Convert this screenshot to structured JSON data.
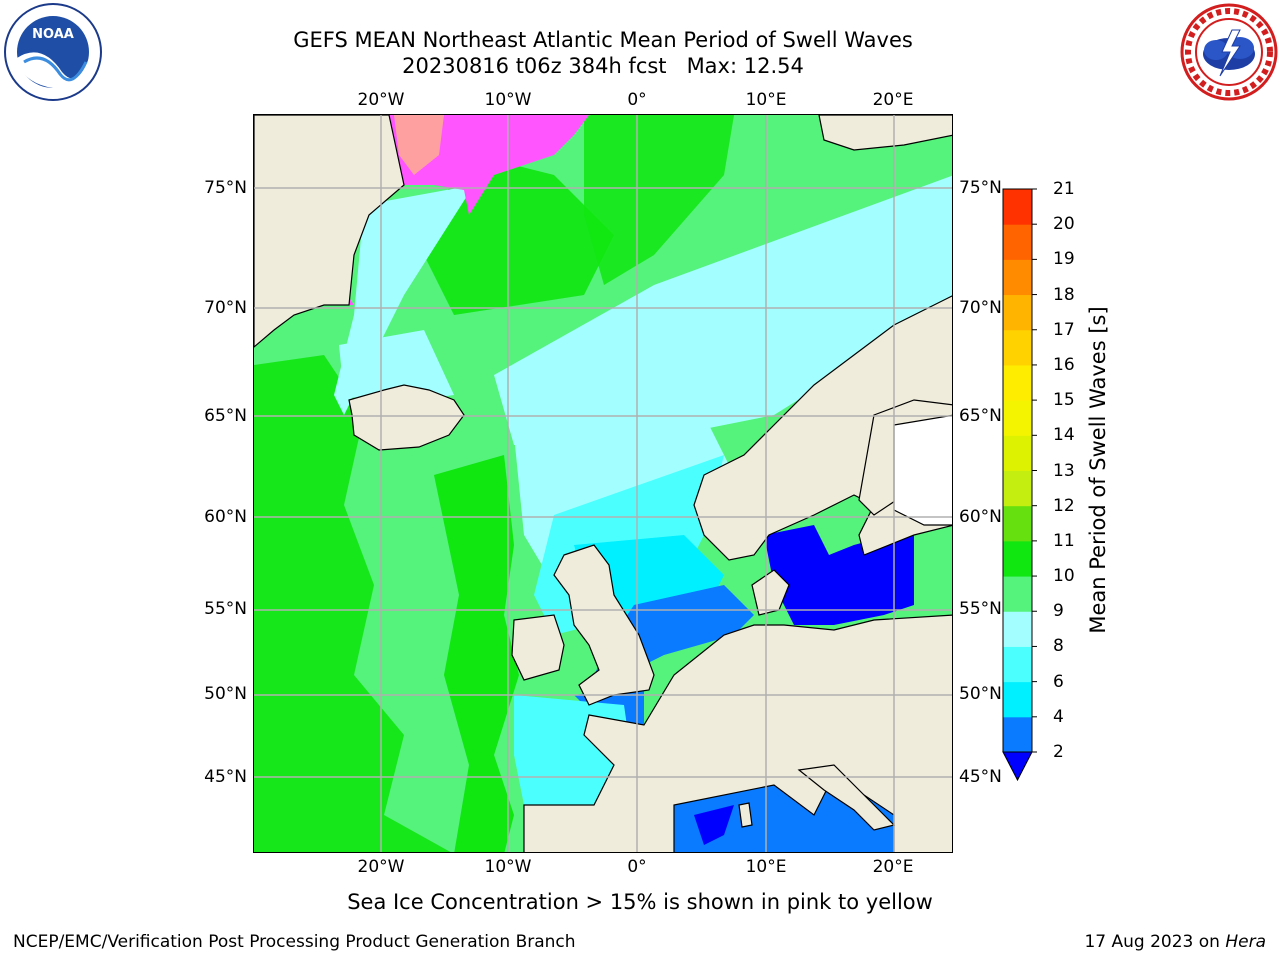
{
  "title": {
    "line1": "GEFS MEAN Northeast Atlantic Mean Period of Swell Waves",
    "line2": "20230816 t06z 384h fcst   Max: 12.54"
  },
  "logos": {
    "left": {
      "name": "noaa-logo",
      "text": "NOAA",
      "ring_text": "NATIONAL OCEANIC AND ATMOSPHERIC ADMINISTRATION · U.S. DEPARTMENT OF COMMERCE"
    },
    "right": {
      "name": "nws-logo",
      "ring_text": "NATIONAL WEATHER SERVICE"
    }
  },
  "map": {
    "projection": "Mercator",
    "lon_ticks_top": [
      "20°W",
      "10°W",
      "0°",
      "10°E",
      "20°E"
    ],
    "lon_ticks_bottom": [
      "20°W",
      "10°W",
      "0°",
      "10°E",
      "20°E"
    ],
    "lat_ticks_left": [
      "75°N",
      "70°N",
      "65°N",
      "60°N",
      "55°N",
      "50°N",
      "45°N"
    ],
    "lat_ticks_right": [
      "75°N",
      "70°N",
      "65°N",
      "60°N",
      "55°N",
      "50°N",
      "45°N"
    ],
    "land_color": "#efecdc",
    "grid_color": "#b0b0b0"
  },
  "colorbar": {
    "title": "Mean Period of Swell Waves [s]",
    "levels": [
      "2",
      "4",
      "6",
      "8",
      "9",
      "10",
      "11",
      "12",
      "13",
      "14",
      "15",
      "16",
      "17",
      "18",
      "19",
      "20",
      "21"
    ],
    "colors": [
      "#0a7bff",
      "#00f0ff",
      "#4cffff",
      "#a3ffff",
      "#55f27c",
      "#10e610",
      "#66e10f",
      "#c4ee0f",
      "#ddf200",
      "#f4f400",
      "#ffed00",
      "#ffd200",
      "#ffb400",
      "#ff8c00",
      "#ff6400",
      "#ff3200"
    ],
    "extend_min_color": "#0000ff"
  },
  "notes": {
    "sea_ice": "Sea Ice Concentration > 15% is shown in pink to yellow"
  },
  "footer": {
    "left": "NCEP/EMC/Verification Post Processing Product Generation Branch",
    "right_date": "17 Aug 2023 on",
    "right_host": "Hera"
  }
}
